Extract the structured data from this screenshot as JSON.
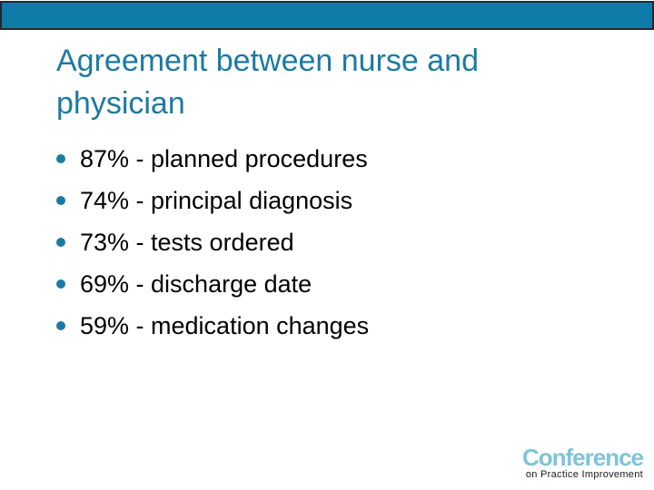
{
  "colors": {
    "page_bg": "#FFFFFF",
    "bar_fill": "#0E7BA8",
    "bar_border": "#1C2A33",
    "title_color": "#1B7AA2",
    "bullet_dot": "#1B7AA2",
    "body_text": "#000000",
    "logo_blue": "#7EC4DC",
    "logo_tagline": "#1A1A1A"
  },
  "title": "Agreement between nurse and physician",
  "bullets": [
    "87% - planned procedures",
    "74% - principal diagnosis",
    "73% - tests ordered",
    "69% - discharge date",
    "59% - medication changes"
  ],
  "logo": {
    "brand": "Conference",
    "tagline": "on Practice Improvement"
  }
}
